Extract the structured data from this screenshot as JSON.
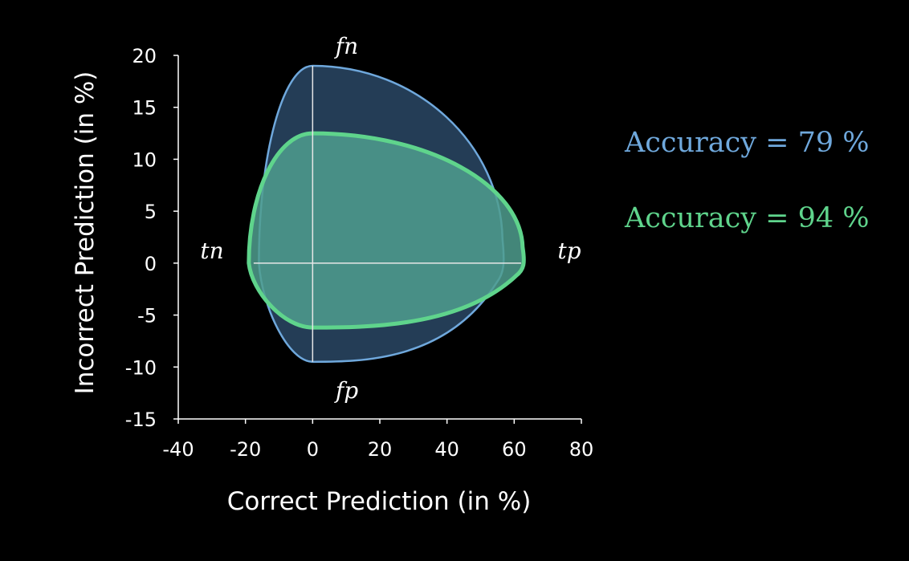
{
  "chart_data": {
    "type": "area",
    "xlabel": "Correct Prediction (in %)",
    "ylabel": "Incorrect Prediction (in %)",
    "xlim": [
      -40,
      80
    ],
    "ylim": [
      -15,
      20
    ],
    "xticks": [
      -40,
      -20,
      0,
      20,
      40,
      60,
      80
    ],
    "yticks": [
      20,
      15,
      10,
      5,
      0,
      -5,
      -10,
      -15
    ],
    "grid": false,
    "corner_labels": {
      "fn": "fn",
      "tn": "tn",
      "tp": "tp",
      "fp": "fp"
    },
    "series": [
      {
        "name": "Accuracy = 79 %",
        "values": {
          "tn": -16,
          "fn": 19,
          "tp": 57,
          "fp": -9.5
        },
        "color": "#6fa8dc",
        "fill": "#243d56"
      },
      {
        "name": "Accuracy = 94 %",
        "values": {
          "tn": -19,
          "fn": 12.5,
          "tp": 63,
          "fp": -6.2
        },
        "color": "#5fd48c",
        "fill": "#4f9e8e"
      }
    ]
  }
}
